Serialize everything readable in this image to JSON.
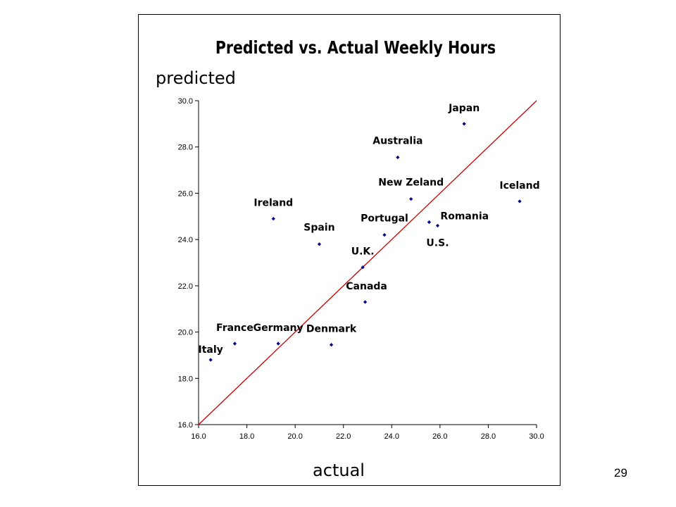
{
  "slide": {
    "page_number": "29"
  },
  "chart_data": {
    "type": "scatter",
    "title": "Predicted vs. Actual Weekly Hours",
    "xlabel": "actual",
    "ylabel": "predicted",
    "xlim": [
      16.0,
      30.0
    ],
    "ylim": [
      16.0,
      30.0
    ],
    "xticks": [
      "16.0",
      "18.0",
      "20.0",
      "22.0",
      "24.0",
      "26.0",
      "28.0",
      "30.0"
    ],
    "yticks": [
      "16.0",
      "18.0",
      "20.0",
      "22.0",
      "24.0",
      "26.0",
      "28.0",
      "30.0"
    ],
    "grid": false,
    "legend": "none",
    "point_color": "#00008B",
    "line_color": "#CC0000",
    "reference_line": {
      "from": [
        16.0,
        16.0
      ],
      "to": [
        30.0,
        30.0
      ]
    },
    "points": [
      {
        "label": "Italy",
        "x": 16.5,
        "y": 18.8
      },
      {
        "label": "France",
        "x": 17.5,
        "y": 19.5
      },
      {
        "label": "Germany",
        "x": 19.3,
        "y": 19.5
      },
      {
        "label": "Denmark",
        "x": 21.5,
        "y": 19.45
      },
      {
        "label": "Ireland",
        "x": 19.1,
        "y": 24.9
      },
      {
        "label": "Spain",
        "x": 21.0,
        "y": 23.8
      },
      {
        "label": "Canada",
        "x": 22.9,
        "y": 21.3
      },
      {
        "label": "U.K.",
        "x": 22.8,
        "y": 22.8
      },
      {
        "label": "Portugal",
        "x": 23.7,
        "y": 24.2
      },
      {
        "label": "New Zeland",
        "x": 24.8,
        "y": 25.75
      },
      {
        "label": "Australia",
        "x": 24.25,
        "y": 27.55
      },
      {
        "label": "U.S.",
        "x": 25.55,
        "y": 24.75
      },
      {
        "label": "Romania",
        "x": 25.9,
        "y": 24.6
      },
      {
        "label": "Japan",
        "x": 27.0,
        "y": 29.0
      },
      {
        "label": "Iceland",
        "x": 29.3,
        "y": 25.65
      }
    ]
  }
}
